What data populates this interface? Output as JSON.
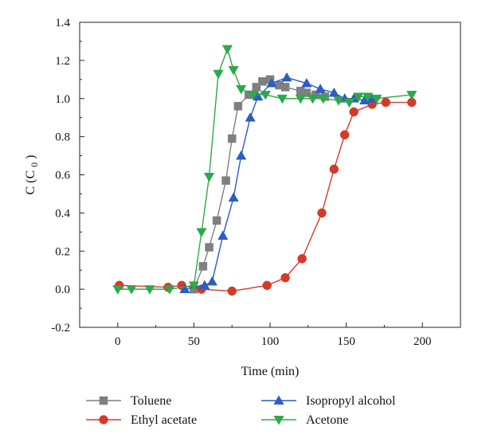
{
  "chart_data": {
    "type": "line",
    "title": "",
    "xlabel": "Time (min)",
    "ylabel": "C (C",
    "ylabel_subscript": "0",
    "ylabel_suffix": ")",
    "xlim": [
      -25,
      225
    ],
    "ylim": [
      -0.2,
      1.4
    ],
    "xticks": [
      0,
      50,
      100,
      150,
      200
    ],
    "xtick_labels": [
      "0",
      "50",
      "100",
      "150",
      "200"
    ],
    "yticks": [
      -0.2,
      0.0,
      0.2,
      0.4,
      0.6,
      0.8,
      1.0,
      1.2,
      1.4
    ],
    "ytick_labels": [
      "-0.2",
      "0.0",
      "0.2",
      "0.4",
      "0.6",
      "0.8",
      "1.0",
      "1.2",
      "1.4"
    ],
    "grid": false,
    "legend_position": "bottom",
    "series": [
      {
        "name": "Toluene",
        "color": "#7f7f7f",
        "marker": "square",
        "x": [
          50,
          56,
          60,
          65,
          71,
          75,
          79,
          86,
          91,
          95,
          100,
          106,
          110,
          120,
          124,
          130,
          136
        ],
        "y": [
          0.0,
          0.12,
          0.22,
          0.36,
          0.57,
          0.79,
          0.96,
          1.02,
          1.06,
          1.09,
          1.1,
          1.07,
          1.06,
          1.04,
          1.03,
          1.02,
          1.01
        ]
      },
      {
        "name": "Ethyl acetate",
        "color": "#d43a2a",
        "marker": "circle",
        "x": [
          1,
          33,
          42,
          55,
          75,
          98,
          110,
          121,
          134,
          142,
          149,
          155,
          167,
          176,
          193
        ],
        "y": [
          0.02,
          0.01,
          0.02,
          0.0,
          -0.01,
          0.02,
          0.06,
          0.16,
          0.4,
          0.63,
          0.81,
          0.93,
          0.97,
          0.98,
          0.98
        ]
      },
      {
        "name": "Isopropyl alcohol",
        "color": "#2c5cc5",
        "marker": "triangle-up",
        "x": [
          44,
          57,
          62,
          69,
          76,
          81,
          87,
          92,
          101,
          111,
          124,
          133,
          142,
          149,
          155,
          162,
          167
        ],
        "y": [
          0.0,
          0.02,
          0.04,
          0.28,
          0.48,
          0.7,
          0.9,
          1.01,
          1.08,
          1.11,
          1.08,
          1.05,
          1.03,
          1.0,
          1.0,
          0.99,
          1.0
        ]
      },
      {
        "name": "Acetone",
        "color": "#2da84a",
        "marker": "triangle-down",
        "x": [
          0,
          9,
          21,
          34,
          50,
          55,
          60,
          66,
          72,
          76,
          81,
          89,
          97,
          108,
          120,
          128,
          135,
          145,
          152,
          158,
          164,
          170,
          193
        ],
        "y": [
          0.0,
          0.0,
          0.0,
          0.0,
          0.02,
          0.3,
          0.59,
          1.13,
          1.26,
          1.15,
          1.05,
          1.02,
          1.02,
          1.0,
          1.0,
          1.0,
          1.0,
          0.99,
          0.98,
          1.01,
          1.01,
          1.0,
          1.02
        ]
      }
    ]
  }
}
